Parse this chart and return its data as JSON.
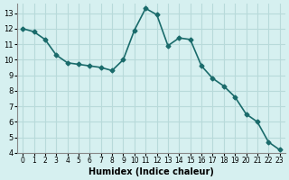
{
  "x": [
    0,
    1,
    2,
    3,
    4,
    5,
    6,
    7,
    8,
    9,
    10,
    11,
    12,
    13,
    14,
    15,
    16,
    17,
    18,
    19,
    20,
    21,
    22,
    23
  ],
  "y": [
    12.0,
    11.8,
    11.3,
    10.3,
    9.8,
    9.7,
    9.6,
    9.5,
    9.3,
    10.0,
    11.9,
    13.3,
    12.9,
    10.9,
    11.4,
    11.3,
    9.6,
    8.8,
    8.3,
    7.6,
    6.5,
    6.0,
    4.7,
    4.2
  ],
  "xlabel": "Humidex (Indice chaleur)",
  "bg_color": "#d6f0f0",
  "grid_color": "#b8dada",
  "line_color": "#1a6b6b",
  "marker": "D",
  "marker_size": 2.5,
  "line_width": 1.2,
  "xlim": [
    -0.5,
    23.5
  ],
  "ylim": [
    4,
    13.6
  ],
  "yticks": [
    4,
    5,
    6,
    7,
    8,
    9,
    10,
    11,
    12,
    13
  ],
  "xticks": [
    0,
    1,
    2,
    3,
    4,
    5,
    6,
    7,
    8,
    9,
    10,
    11,
    12,
    13,
    14,
    15,
    16,
    17,
    18,
    19,
    20,
    21,
    22,
    23
  ]
}
